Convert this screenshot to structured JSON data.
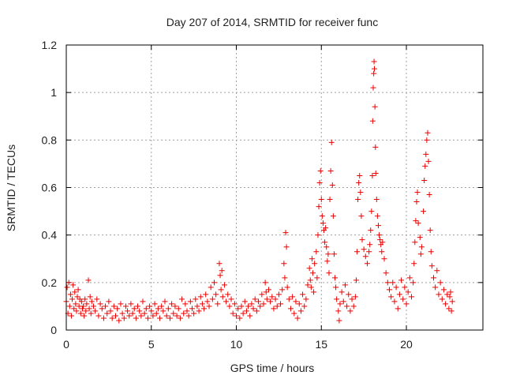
{
  "chart_data": {
    "type": "scatter",
    "title": "Day 207 of 2014, SRMTID for receiver func",
    "xlabel": "GPS time / hours",
    "ylabel": "SRMTID / TECUs",
    "xlim": [
      0,
      24.5
    ],
    "ylim": [
      0,
      1.2
    ],
    "xticks": [
      0,
      5,
      10,
      15,
      20
    ],
    "xtick_labels": [
      "0",
      "5",
      "10",
      "15",
      "20"
    ],
    "yticks": [
      0,
      0.2,
      0.4,
      0.6,
      0.8,
      1.0,
      1.2
    ],
    "ytick_labels": [
      "0",
      "0.2",
      "0.4",
      "0.6",
      "0.8",
      "1",
      "1.2"
    ],
    "grid": true,
    "marker": "+",
    "color": "#ee0000",
    "series": [
      {
        "name": "SRMTID",
        "points": [
          [
            0.0,
            0.12
          ],
          [
            0.05,
            0.18
          ],
          [
            0.1,
            0.07
          ],
          [
            0.15,
            0.2
          ],
          [
            0.2,
            0.1
          ],
          [
            0.25,
            0.15
          ],
          [
            0.3,
            0.06
          ],
          [
            0.35,
            0.13
          ],
          [
            0.4,
            0.19
          ],
          [
            0.45,
            0.09
          ],
          [
            0.5,
            0.16
          ],
          [
            0.55,
            0.11
          ],
          [
            0.6,
            0.08
          ],
          [
            0.65,
            0.14
          ],
          [
            0.7,
            0.17
          ],
          [
            0.75,
            0.1
          ],
          [
            0.8,
            0.13
          ],
          [
            0.85,
            0.07
          ],
          [
            0.9,
            0.12
          ],
          [
            0.95,
            0.09
          ],
          [
            1.0,
            0.1
          ],
          [
            1.05,
            0.06
          ],
          [
            1.1,
            0.13
          ],
          [
            1.15,
            0.08
          ],
          [
            1.2,
            0.11
          ],
          [
            1.3,
            0.21
          ],
          [
            1.35,
            0.09
          ],
          [
            1.4,
            0.14
          ],
          [
            1.45,
            0.07
          ],
          [
            1.5,
            0.12
          ],
          [
            1.6,
            0.1
          ],
          [
            1.7,
            0.08
          ],
          [
            1.8,
            0.13
          ],
          [
            1.9,
            0.06
          ],
          [
            2.0,
            0.11
          ],
          [
            2.1,
            0.09
          ],
          [
            2.2,
            0.05
          ],
          [
            2.3,
            0.1
          ],
          [
            2.4,
            0.07
          ],
          [
            2.5,
            0.12
          ],
          [
            2.6,
            0.08
          ],
          [
            2.7,
            0.05
          ],
          [
            2.8,
            0.1
          ],
          [
            2.9,
            0.06
          ],
          [
            3.0,
            0.09
          ],
          [
            3.1,
            0.04
          ],
          [
            3.2,
            0.11
          ],
          [
            3.3,
            0.07
          ],
          [
            3.4,
            0.05
          ],
          [
            3.5,
            0.1
          ],
          [
            3.6,
            0.08
          ],
          [
            3.7,
            0.06
          ],
          [
            3.8,
            0.11
          ],
          [
            3.9,
            0.07
          ],
          [
            4.0,
            0.09
          ],
          [
            4.1,
            0.05
          ],
          [
            4.2,
            0.1
          ],
          [
            4.3,
            0.08
          ],
          [
            4.4,
            0.06
          ],
          [
            4.5,
            0.12
          ],
          [
            4.6,
            0.07
          ],
          [
            4.7,
            0.09
          ],
          [
            4.8,
            0.05
          ],
          [
            4.9,
            0.1
          ],
          [
            5.0,
            0.08
          ],
          [
            5.1,
            0.06
          ],
          [
            5.2,
            0.11
          ],
          [
            5.3,
            0.07
          ],
          [
            5.4,
            0.09
          ],
          [
            5.5,
            0.05
          ],
          [
            5.6,
            0.1
          ],
          [
            5.7,
            0.08
          ],
          [
            5.8,
            0.12
          ],
          [
            5.9,
            0.06
          ],
          [
            6.0,
            0.09
          ],
          [
            6.1,
            0.05
          ],
          [
            6.2,
            0.11
          ],
          [
            6.3,
            0.07
          ],
          [
            6.4,
            0.1
          ],
          [
            6.5,
            0.06
          ],
          [
            6.6,
            0.09
          ],
          [
            6.7,
            0.05
          ],
          [
            6.8,
            0.13
          ],
          [
            6.9,
            0.07
          ],
          [
            7.0,
            0.11
          ],
          [
            7.1,
            0.08
          ],
          [
            7.2,
            0.06
          ],
          [
            7.3,
            0.12
          ],
          [
            7.4,
            0.09
          ],
          [
            7.5,
            0.07
          ],
          [
            7.6,
            0.13
          ],
          [
            7.7,
            0.1
          ],
          [
            7.8,
            0.08
          ],
          [
            7.9,
            0.14
          ],
          [
            8.0,
            0.11
          ],
          [
            8.1,
            0.09
          ],
          [
            8.2,
            0.15
          ],
          [
            8.3,
            0.12
          ],
          [
            8.4,
            0.1
          ],
          [
            8.5,
            0.18
          ],
          [
            8.6,
            0.13
          ],
          [
            8.7,
            0.2
          ],
          [
            8.8,
            0.15
          ],
          [
            8.9,
            0.11
          ],
          [
            9.0,
            0.28
          ],
          [
            9.05,
            0.23
          ],
          [
            9.1,
            0.17
          ],
          [
            9.15,
            0.25
          ],
          [
            9.2,
            0.14
          ],
          [
            9.3,
            0.19
          ],
          [
            9.4,
            0.12
          ],
          [
            9.5,
            0.15
          ],
          [
            9.6,
            0.1
          ],
          [
            9.7,
            0.13
          ],
          [
            9.8,
            0.07
          ],
          [
            9.9,
            0.11
          ],
          [
            10.0,
            0.06
          ],
          [
            10.1,
            0.09
          ],
          [
            10.2,
            0.05
          ],
          [
            10.3,
            0.1
          ],
          [
            10.4,
            0.07
          ],
          [
            10.5,
            0.12
          ],
          [
            10.6,
            0.08
          ],
          [
            10.7,
            0.1
          ],
          [
            10.8,
            0.06
          ],
          [
            10.9,
            0.11
          ],
          [
            11.0,
            0.09
          ],
          [
            11.1,
            0.13
          ],
          [
            11.2,
            0.08
          ],
          [
            11.3,
            0.12
          ],
          [
            11.4,
            0.1
          ],
          [
            11.5,
            0.15
          ],
          [
            11.6,
            0.11
          ],
          [
            11.7,
            0.2
          ],
          [
            11.75,
            0.16
          ],
          [
            11.8,
            0.13
          ],
          [
            11.9,
            0.17
          ],
          [
            12.0,
            0.12
          ],
          [
            12.1,
            0.14
          ],
          [
            12.2,
            0.09
          ],
          [
            12.3,
            0.13
          ],
          [
            12.4,
            0.1
          ],
          [
            12.5,
            0.15
          ],
          [
            12.6,
            0.11
          ],
          [
            12.7,
            0.17
          ],
          [
            12.8,
            0.28
          ],
          [
            12.85,
            0.22
          ],
          [
            12.9,
            0.41
          ],
          [
            12.95,
            0.35
          ],
          [
            13.0,
            0.18
          ],
          [
            13.1,
            0.13
          ],
          [
            13.2,
            0.09
          ],
          [
            13.3,
            0.14
          ],
          [
            13.4,
            0.07
          ],
          [
            13.5,
            0.12
          ],
          [
            13.6,
            0.05
          ],
          [
            13.7,
            0.11
          ],
          [
            13.8,
            0.08
          ],
          [
            13.9,
            0.15
          ],
          [
            14.0,
            0.1
          ],
          [
            14.1,
            0.13
          ],
          [
            14.2,
            0.19
          ],
          [
            14.3,
            0.26
          ],
          [
            14.35,
            0.21
          ],
          [
            14.4,
            0.18
          ],
          [
            14.45,
            0.3
          ],
          [
            14.5,
            0.24
          ],
          [
            14.55,
            0.16
          ],
          [
            14.6,
            0.28
          ],
          [
            14.7,
            0.33
          ],
          [
            14.75,
            0.22
          ],
          [
            14.8,
            0.4
          ],
          [
            14.85,
            0.52
          ],
          [
            14.9,
            0.62
          ],
          [
            14.95,
            0.67
          ],
          [
            15.0,
            0.55
          ],
          [
            15.05,
            0.48
          ],
          [
            15.1,
            0.45
          ],
          [
            15.15,
            0.42
          ],
          [
            15.2,
            0.37
          ],
          [
            15.25,
            0.43
          ],
          [
            15.3,
            0.35
          ],
          [
            15.35,
            0.29
          ],
          [
            15.4,
            0.32
          ],
          [
            15.45,
            0.24
          ],
          [
            15.5,
            0.55
          ],
          [
            15.55,
            0.67
          ],
          [
            15.6,
            0.79
          ],
          [
            15.65,
            0.61
          ],
          [
            15.7,
            0.48
          ],
          [
            15.75,
            0.32
          ],
          [
            15.8,
            0.22
          ],
          [
            15.85,
            0.18
          ],
          [
            15.9,
            0.13
          ],
          [
            16.0,
            0.08
          ],
          [
            16.05,
            0.04
          ],
          [
            16.1,
            0.11
          ],
          [
            16.2,
            0.16
          ],
          [
            16.3,
            0.12
          ],
          [
            16.4,
            0.19
          ],
          [
            16.5,
            0.1
          ],
          [
            16.6,
            0.15
          ],
          [
            16.7,
            0.08
          ],
          [
            16.8,
            0.13
          ],
          [
            16.9,
            0.1
          ],
          [
            17.0,
            0.14
          ],
          [
            17.05,
            0.21
          ],
          [
            17.1,
            0.33
          ],
          [
            17.15,
            0.55
          ],
          [
            17.2,
            0.62
          ],
          [
            17.25,
            0.65
          ],
          [
            17.3,
            0.58
          ],
          [
            17.35,
            0.48
          ],
          [
            17.4,
            0.38
          ],
          [
            17.5,
            0.34
          ],
          [
            17.6,
            0.31
          ],
          [
            17.7,
            0.28
          ],
          [
            17.8,
            0.33
          ],
          [
            17.85,
            0.36
          ],
          [
            17.9,
            0.42
          ],
          [
            17.95,
            0.5
          ],
          [
            18.0,
            0.65
          ],
          [
            18.02,
            0.88
          ],
          [
            18.05,
            1.02
          ],
          [
            18.08,
            1.08
          ],
          [
            18.1,
            1.13
          ],
          [
            18.12,
            1.1
          ],
          [
            18.15,
            0.94
          ],
          [
            18.18,
            0.77
          ],
          [
            18.2,
            0.66
          ],
          [
            18.25,
            0.55
          ],
          [
            18.3,
            0.48
          ],
          [
            18.35,
            0.44
          ],
          [
            18.4,
            0.4
          ],
          [
            18.45,
            0.38
          ],
          [
            18.5,
            0.36
          ],
          [
            18.55,
            0.33
          ],
          [
            18.6,
            0.37
          ],
          [
            18.7,
            0.3
          ],
          [
            18.8,
            0.24
          ],
          [
            18.9,
            0.2
          ],
          [
            19.0,
            0.17
          ],
          [
            19.1,
            0.14
          ],
          [
            19.2,
            0.2
          ],
          [
            19.3,
            0.12
          ],
          [
            19.4,
            0.18
          ],
          [
            19.5,
            0.09
          ],
          [
            19.6,
            0.15
          ],
          [
            19.7,
            0.21
          ],
          [
            19.8,
            0.13
          ],
          [
            19.9,
            0.18
          ],
          [
            20.0,
            0.11
          ],
          [
            20.1,
            0.16
          ],
          [
            20.2,
            0.22
          ],
          [
            20.3,
            0.14
          ],
          [
            20.4,
            0.2
          ],
          [
            20.45,
            0.28
          ],
          [
            20.5,
            0.37
          ],
          [
            20.55,
            0.46
          ],
          [
            20.6,
            0.54
          ],
          [
            20.65,
            0.58
          ],
          [
            20.7,
            0.45
          ],
          [
            20.8,
            0.39
          ],
          [
            20.85,
            0.32
          ],
          [
            20.9,
            0.35
          ],
          [
            21.0,
            0.5
          ],
          [
            21.05,
            0.63
          ],
          [
            21.1,
            0.69
          ],
          [
            21.15,
            0.74
          ],
          [
            21.2,
            0.8
          ],
          [
            21.25,
            0.83
          ],
          [
            21.3,
            0.71
          ],
          [
            21.35,
            0.57
          ],
          [
            21.4,
            0.42
          ],
          [
            21.45,
            0.33
          ],
          [
            21.5,
            0.27
          ],
          [
            21.6,
            0.22
          ],
          [
            21.7,
            0.18
          ],
          [
            21.8,
            0.25
          ],
          [
            21.9,
            0.15
          ],
          [
            22.0,
            0.2
          ],
          [
            22.1,
            0.13
          ],
          [
            22.2,
            0.17
          ],
          [
            22.3,
            0.11
          ],
          [
            22.4,
            0.15
          ],
          [
            22.5,
            0.09
          ],
          [
            22.55,
            0.14
          ],
          [
            22.6,
            0.16
          ],
          [
            22.65,
            0.08
          ],
          [
            22.7,
            0.12
          ]
        ]
      }
    ]
  }
}
